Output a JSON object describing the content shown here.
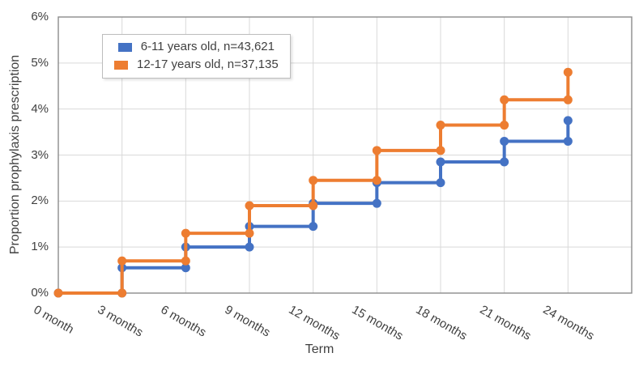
{
  "chart_data": {
    "type": "line",
    "subtype": "step-after-cumulative",
    "title": "",
    "xlabel": "Term",
    "ylabel": "Proportion prophylaxis prescription",
    "categories": [
      "0 month",
      "3 months",
      "6 months",
      "9 months",
      "12 months",
      "15 months",
      "18 months",
      "21 months",
      "24 months"
    ],
    "x_values_months": [
      0,
      3,
      6,
      9,
      12,
      15,
      18,
      21,
      24
    ],
    "y_ticks": [
      "0%",
      "1%",
      "2%",
      "3%",
      "4%",
      "5%",
      "6%"
    ],
    "ylim": [
      0,
      6
    ],
    "y_unit": "percent",
    "grid": true,
    "legend_position": "top-left inside plot",
    "series": [
      {
        "name": "6-11 years old, n=43,621",
        "color": "#4472C4",
        "values": [
          0,
          0.55,
          1.0,
          1.45,
          1.95,
          2.4,
          2.85,
          3.3,
          3.75
        ]
      },
      {
        "name": "12-17 years old, n=37,135",
        "color": "#ED7D31",
        "values": [
          0,
          0.7,
          1.3,
          1.9,
          2.45,
          3.1,
          3.65,
          4.2,
          4.8
        ]
      }
    ],
    "grid_color": "#D9D9D9",
    "border_color": "#8C8C8C",
    "text_color": "#404040",
    "background": "#FFFFFF"
  }
}
